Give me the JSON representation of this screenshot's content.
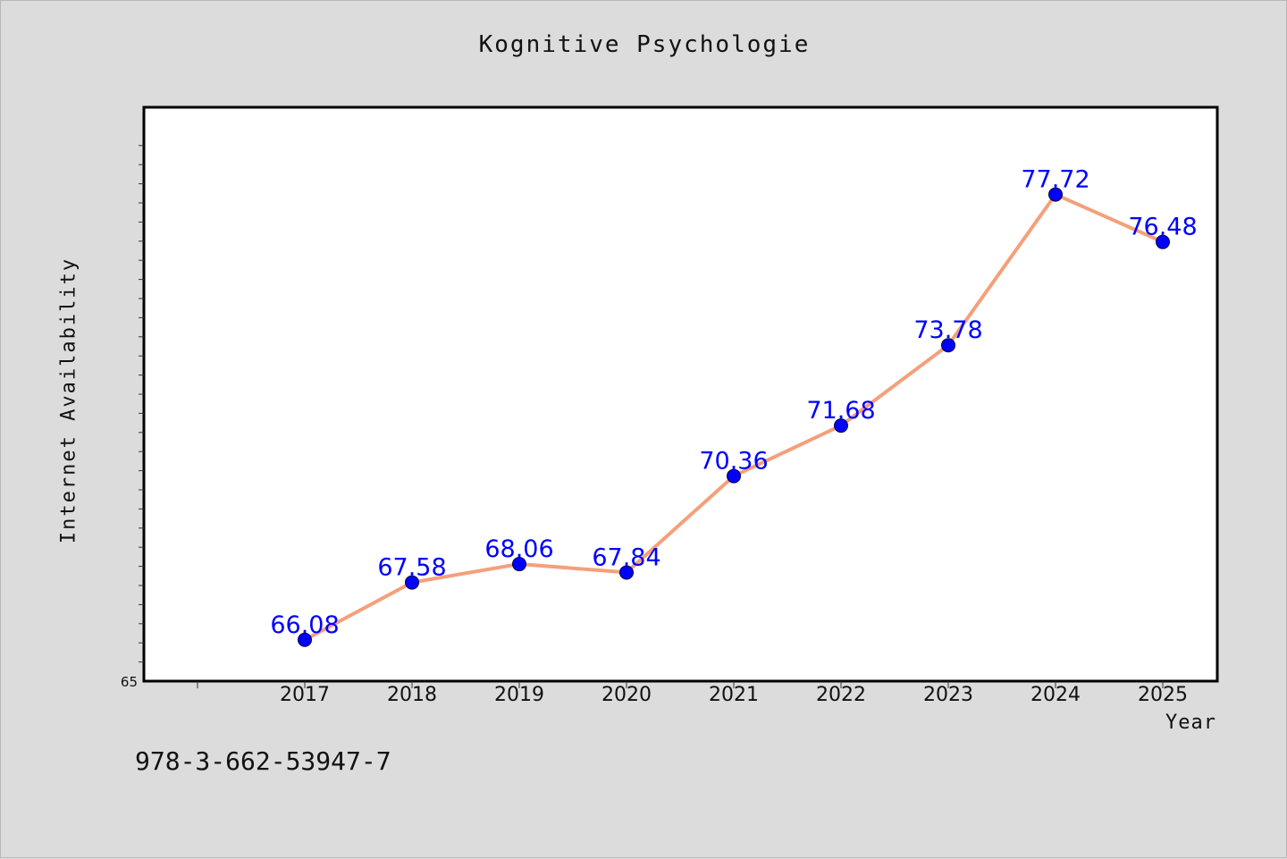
{
  "chart_data": {
    "type": "line",
    "title": "Kognitive Psychologie",
    "xlabel": "Year",
    "ylabel": "Internet Availability",
    "categories": [
      "2017",
      "2018",
      "2019",
      "2020",
      "2021",
      "2022",
      "2023",
      "2024",
      "2025"
    ],
    "series": [
      {
        "values": [
          66.08,
          67.58,
          68.06,
          67.84,
          70.36,
          71.68,
          73.78,
          77.72,
          76.48
        ],
        "labels": [
          "66.08",
          "67.58",
          "68.06",
          "67.84",
          "70.36",
          "71.68",
          "73.78",
          "77.72",
          "76.48"
        ],
        "line_color": "#f4a07a",
        "marker_color": "#0000ff",
        "label_color": "#0000ff"
      }
    ],
    "y_tick_label": "65",
    "ylim": [
      65,
      80
    ],
    "grid": false,
    "legend": "none"
  },
  "footer": {
    "code": "978-3-662-53947-7"
  },
  "colors": {
    "background": "#dcdcdc",
    "plot_background": "#ffffff",
    "axis": "#000000"
  }
}
